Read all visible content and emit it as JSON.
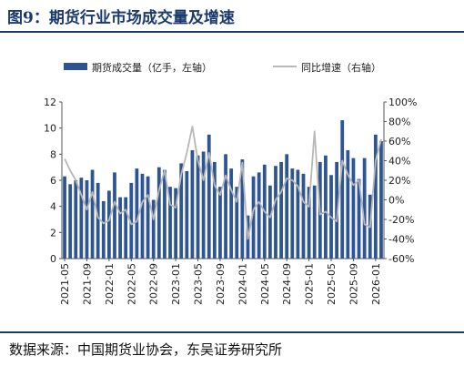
{
  "title": "图9：期货行业市场成交量及增速",
  "source": "数据来源：中国期货业协会，东吴证券研究所",
  "colors": {
    "bar": "#2e5593",
    "line": "#b8b8b8",
    "accent": "#1b3a6b"
  },
  "chart_data": {
    "type": "bar",
    "x_tick_labels": [
      "2021-05",
      "2021-09",
      "2022-01",
      "2022-05",
      "2022-09",
      "2023-01",
      "2023-05",
      "2023-09",
      "2024-01",
      "2024-05",
      "2024-09",
      "2025-01",
      "2025-05",
      "2025-09",
      "2026-01"
    ],
    "left_axis": {
      "ylim": [
        0,
        12
      ],
      "ticks": [
        0,
        2,
        4,
        6,
        8,
        10,
        12
      ]
    },
    "right_axis": {
      "ylim": [
        -60,
        100
      ],
      "ticks": [
        "-60%",
        "-40%",
        "-20%",
        "0%",
        "20%",
        "40%",
        "60%",
        "80%",
        "100%"
      ]
    },
    "series": [
      {
        "name": "期货成交量（亿手，左轴）",
        "type": "bar",
        "axis": "left",
        "values": [
          6.3,
          5.7,
          6.0,
          6.2,
          6.0,
          6.8,
          5.8,
          4.4,
          5.2,
          6.6,
          4.7,
          4.7,
          5.8,
          6.9,
          6.5,
          6.3,
          4.5,
          7.0,
          6.8,
          5.5,
          5.4,
          7.3,
          6.7,
          8.3,
          7.9,
          8.2,
          9.5,
          7.4,
          5.5,
          8.0,
          6.9,
          5.5,
          7.6,
          3.3,
          6.3,
          6.6,
          7.2,
          5.6,
          7.1,
          7.4,
          8.0,
          6.9,
          6.8,
          6.5,
          5.5,
          5.6,
          7.4,
          7.9,
          6.4,
          7.4,
          10.6,
          8.3,
          7.7,
          6.1,
          7.7,
          4.9,
          9.5,
          9.0
        ]
      },
      {
        "name": "同比增速（右轴）",
        "type": "line",
        "axis": "right",
        "values": [
          42,
          30,
          20,
          5,
          -10,
          8,
          -18,
          -24,
          -21,
          -2,
          -14,
          -10,
          -25,
          -22,
          -2,
          5,
          -20,
          10,
          30,
          -5,
          -8,
          26,
          48,
          75,
          40,
          20,
          48,
          15,
          5,
          25,
          10,
          -2,
          38,
          -40,
          -10,
          -2,
          -12,
          -18,
          0,
          8,
          22,
          20,
          14,
          -2,
          -7,
          70,
          -15,
          -12,
          -18,
          -22,
          40,
          26,
          15,
          20,
          -25,
          -28,
          40,
          62
        ]
      }
    ]
  }
}
